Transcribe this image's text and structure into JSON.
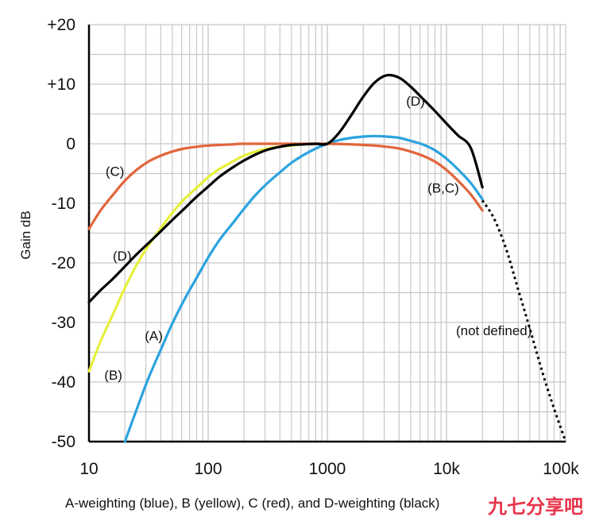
{
  "chart_data": {
    "type": "line",
    "caption": "A-weighting (blue), B (yellow), C (red), and D-weighting (black)",
    "ylabel": "Gain dB",
    "xlabel": "",
    "xscale": "log",
    "xlim": [
      10,
      100000
    ],
    "ylim": [
      -50,
      20
    ],
    "grid": true,
    "x_tick_labels": [
      {
        "value": 10,
        "label": "10"
      },
      {
        "value": 100,
        "label": "100"
      },
      {
        "value": 1000,
        "label": "1000"
      },
      {
        "value": 10000,
        "label": "10k"
      },
      {
        "value": 100000,
        "label": "100k"
      }
    ],
    "y_tick_labels": [
      {
        "value": 20,
        "label": "+20"
      },
      {
        "value": 10,
        "label": "+10"
      },
      {
        "value": 0,
        "label": "0"
      },
      {
        "value": -10,
        "label": "-10"
      },
      {
        "value": -20,
        "label": "-20"
      },
      {
        "value": -30,
        "label": "-30"
      },
      {
        "value": -40,
        "label": "-40"
      },
      {
        "value": -50,
        "label": "-50"
      }
    ],
    "series": [
      {
        "key": "A",
        "color": "#2ba3e0",
        "dashed": false,
        "x": [
          20,
          25,
          31.5,
          40,
          50,
          63,
          80,
          100,
          125,
          160,
          200,
          250,
          315,
          400,
          500,
          630,
          800,
          1000,
          1250,
          1600,
          2000,
          2500,
          3150,
          4000,
          5000,
          6300,
          8000,
          10000,
          12500,
          16000,
          20000
        ],
        "y": [
          -50.5,
          -44.7,
          -39.4,
          -34.6,
          -30.2,
          -26.2,
          -22.5,
          -19.1,
          -16.1,
          -13.4,
          -10.9,
          -8.6,
          -6.6,
          -4.8,
          -3.2,
          -1.9,
          -0.8,
          0,
          0.6,
          1.0,
          1.2,
          1.3,
          1.2,
          1.0,
          0.5,
          -0.1,
          -1.1,
          -2.5,
          -4.3,
          -6.6,
          -9.3
        ]
      },
      {
        "key": "B",
        "color": "#e6f03c",
        "dashed": false,
        "x": [
          10,
          12.5,
          16,
          20,
          25,
          31.5,
          40,
          50,
          63,
          80,
          100,
          125,
          160,
          200,
          250,
          315,
          400,
          500,
          630,
          800,
          1000
        ],
        "y": [
          -38.2,
          -33.2,
          -28.5,
          -24.2,
          -20.4,
          -17.1,
          -14.2,
          -11.6,
          -9.3,
          -7.4,
          -5.6,
          -4.2,
          -3.0,
          -2.0,
          -1.3,
          -0.8,
          -0.5,
          -0.3,
          -0.1,
          0,
          0
        ]
      },
      {
        "key": "C",
        "color": "#e2653c",
        "dashed": false,
        "x": [
          10,
          12.5,
          16,
          20,
          25,
          31.5,
          40,
          50,
          63,
          80,
          100,
          125,
          160,
          200,
          400,
          800,
          1000,
          1600,
          2000,
          2500,
          3150,
          4000,
          5000,
          6300,
          8000,
          10000,
          12500,
          16000,
          20000
        ],
        "y": [
          -14.3,
          -11.2,
          -8.5,
          -6.2,
          -4.4,
          -3.0,
          -2.0,
          -1.3,
          -0.8,
          -0.5,
          -0.3,
          -0.2,
          -0.1,
          0,
          0,
          0,
          0,
          -0.1,
          -0.2,
          -0.3,
          -0.5,
          -0.8,
          -1.3,
          -2.0,
          -3.0,
          -4.4,
          -6.2,
          -8.5,
          -11.2
        ]
      },
      {
        "key": "D",
        "color": "#000000",
        "dashed": false,
        "x": [
          10,
          12.5,
          16,
          20,
          25,
          31.5,
          40,
          50,
          63,
          80,
          100,
          125,
          160,
          200,
          250,
          315,
          400,
          500,
          630,
          800,
          1000,
          1250,
          1600,
          2000,
          2500,
          3150,
          4000,
          5000,
          6300,
          8000,
          10000,
          12500,
          16000,
          20000
        ],
        "y": [
          -26.6,
          -24.6,
          -22.6,
          -20.6,
          -18.6,
          -16.7,
          -14.7,
          -12.8,
          -10.9,
          -8.9,
          -7.2,
          -5.5,
          -4.0,
          -2.8,
          -1.8,
          -1.0,
          -0.5,
          -0.2,
          -0.1,
          0,
          0,
          1.8,
          4.9,
          7.9,
          10.3,
          11.5,
          11.1,
          9.6,
          7.6,
          5.5,
          3.4,
          1.4,
          -0.7,
          -7.3
        ]
      },
      {
        "key": "not-defined",
        "color": "#000000",
        "dashed": true,
        "x": [
          20000,
          25000,
          31500,
          40000,
          50000,
          63000,
          80000,
          100000
        ],
        "y": [
          -9.5,
          -12.5,
          -17.5,
          -24.5,
          -31.0,
          -38.0,
          -44.5,
          -51.0
        ]
      }
    ],
    "annotations": [
      {
        "text": "(A)",
        "x": 35,
        "y": -33
      },
      {
        "text": "(B)",
        "x": 16,
        "y": -39.6
      },
      {
        "text": "(C)",
        "x": 16.5,
        "y": -5.4
      },
      {
        "text": "(D)",
        "x": 19,
        "y": -19.6
      },
      {
        "text": "(D)",
        "x": 5500,
        "y": 6.4
      },
      {
        "text": "(B,C)",
        "x": 9400,
        "y": -8.2
      },
      {
        "text": "(not defined)",
        "x": 25000,
        "y": -32.1
      }
    ]
  },
  "watermark": "九七分享吧"
}
